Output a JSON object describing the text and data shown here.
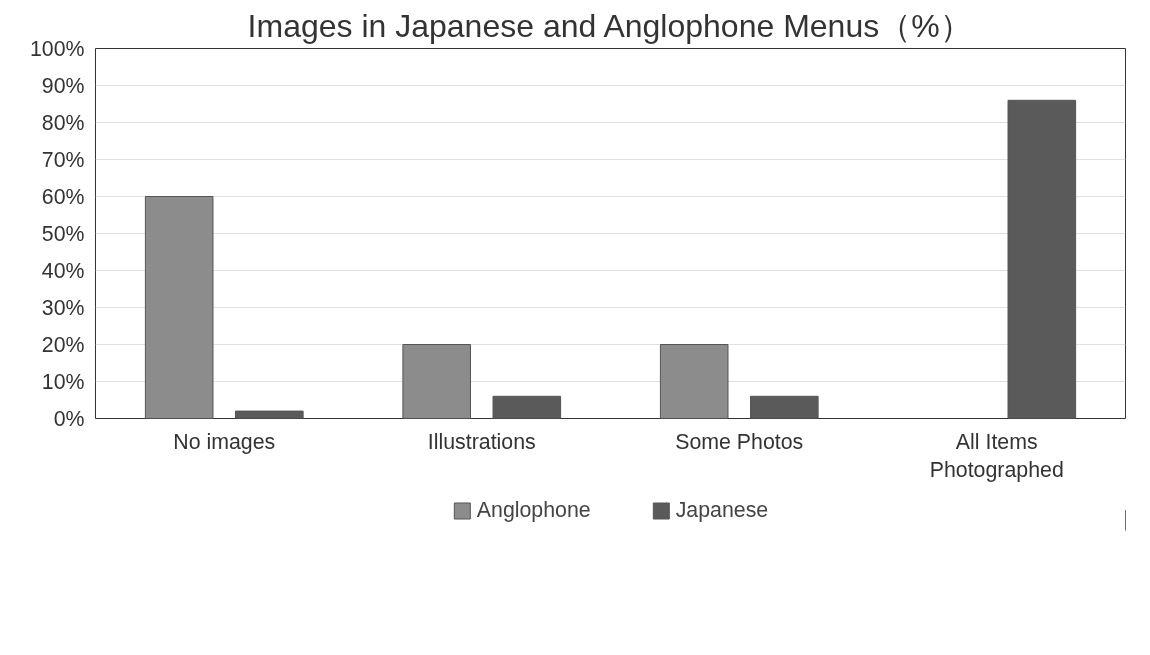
{
  "chart_data": {
    "type": "bar",
    "title": "Images in Japanese and Anglophone Menus（%）",
    "categories": [
      "No images",
      "Illustrations",
      "Some Photos",
      "All Items\nPhotographed"
    ],
    "series": [
      {
        "name": "Anglophone",
        "color": "#8c8c8c",
        "values": [
          60,
          20,
          20,
          null
        ]
      },
      {
        "name": "Japanese",
        "color": "#5a5a5a",
        "values": [
          2,
          6,
          6,
          86
        ]
      }
    ],
    "ylim": [
      0,
      100
    ],
    "yticks": [
      {
        "value": 0,
        "label": "0%"
      },
      {
        "value": 10,
        "label": "10%"
      },
      {
        "value": 20,
        "label": "20%"
      },
      {
        "value": 30,
        "label": "30%"
      },
      {
        "value": 40,
        "label": "40%"
      },
      {
        "value": 50,
        "label": "50%"
      },
      {
        "value": 60,
        "label": "60%"
      },
      {
        "value": 70,
        "label": "70%"
      },
      {
        "value": 80,
        "label": "80%"
      },
      {
        "value": 90,
        "label": "90%"
      },
      {
        "value": 100,
        "label": "100%"
      }
    ],
    "grid": "y",
    "legend": "bottom"
  }
}
